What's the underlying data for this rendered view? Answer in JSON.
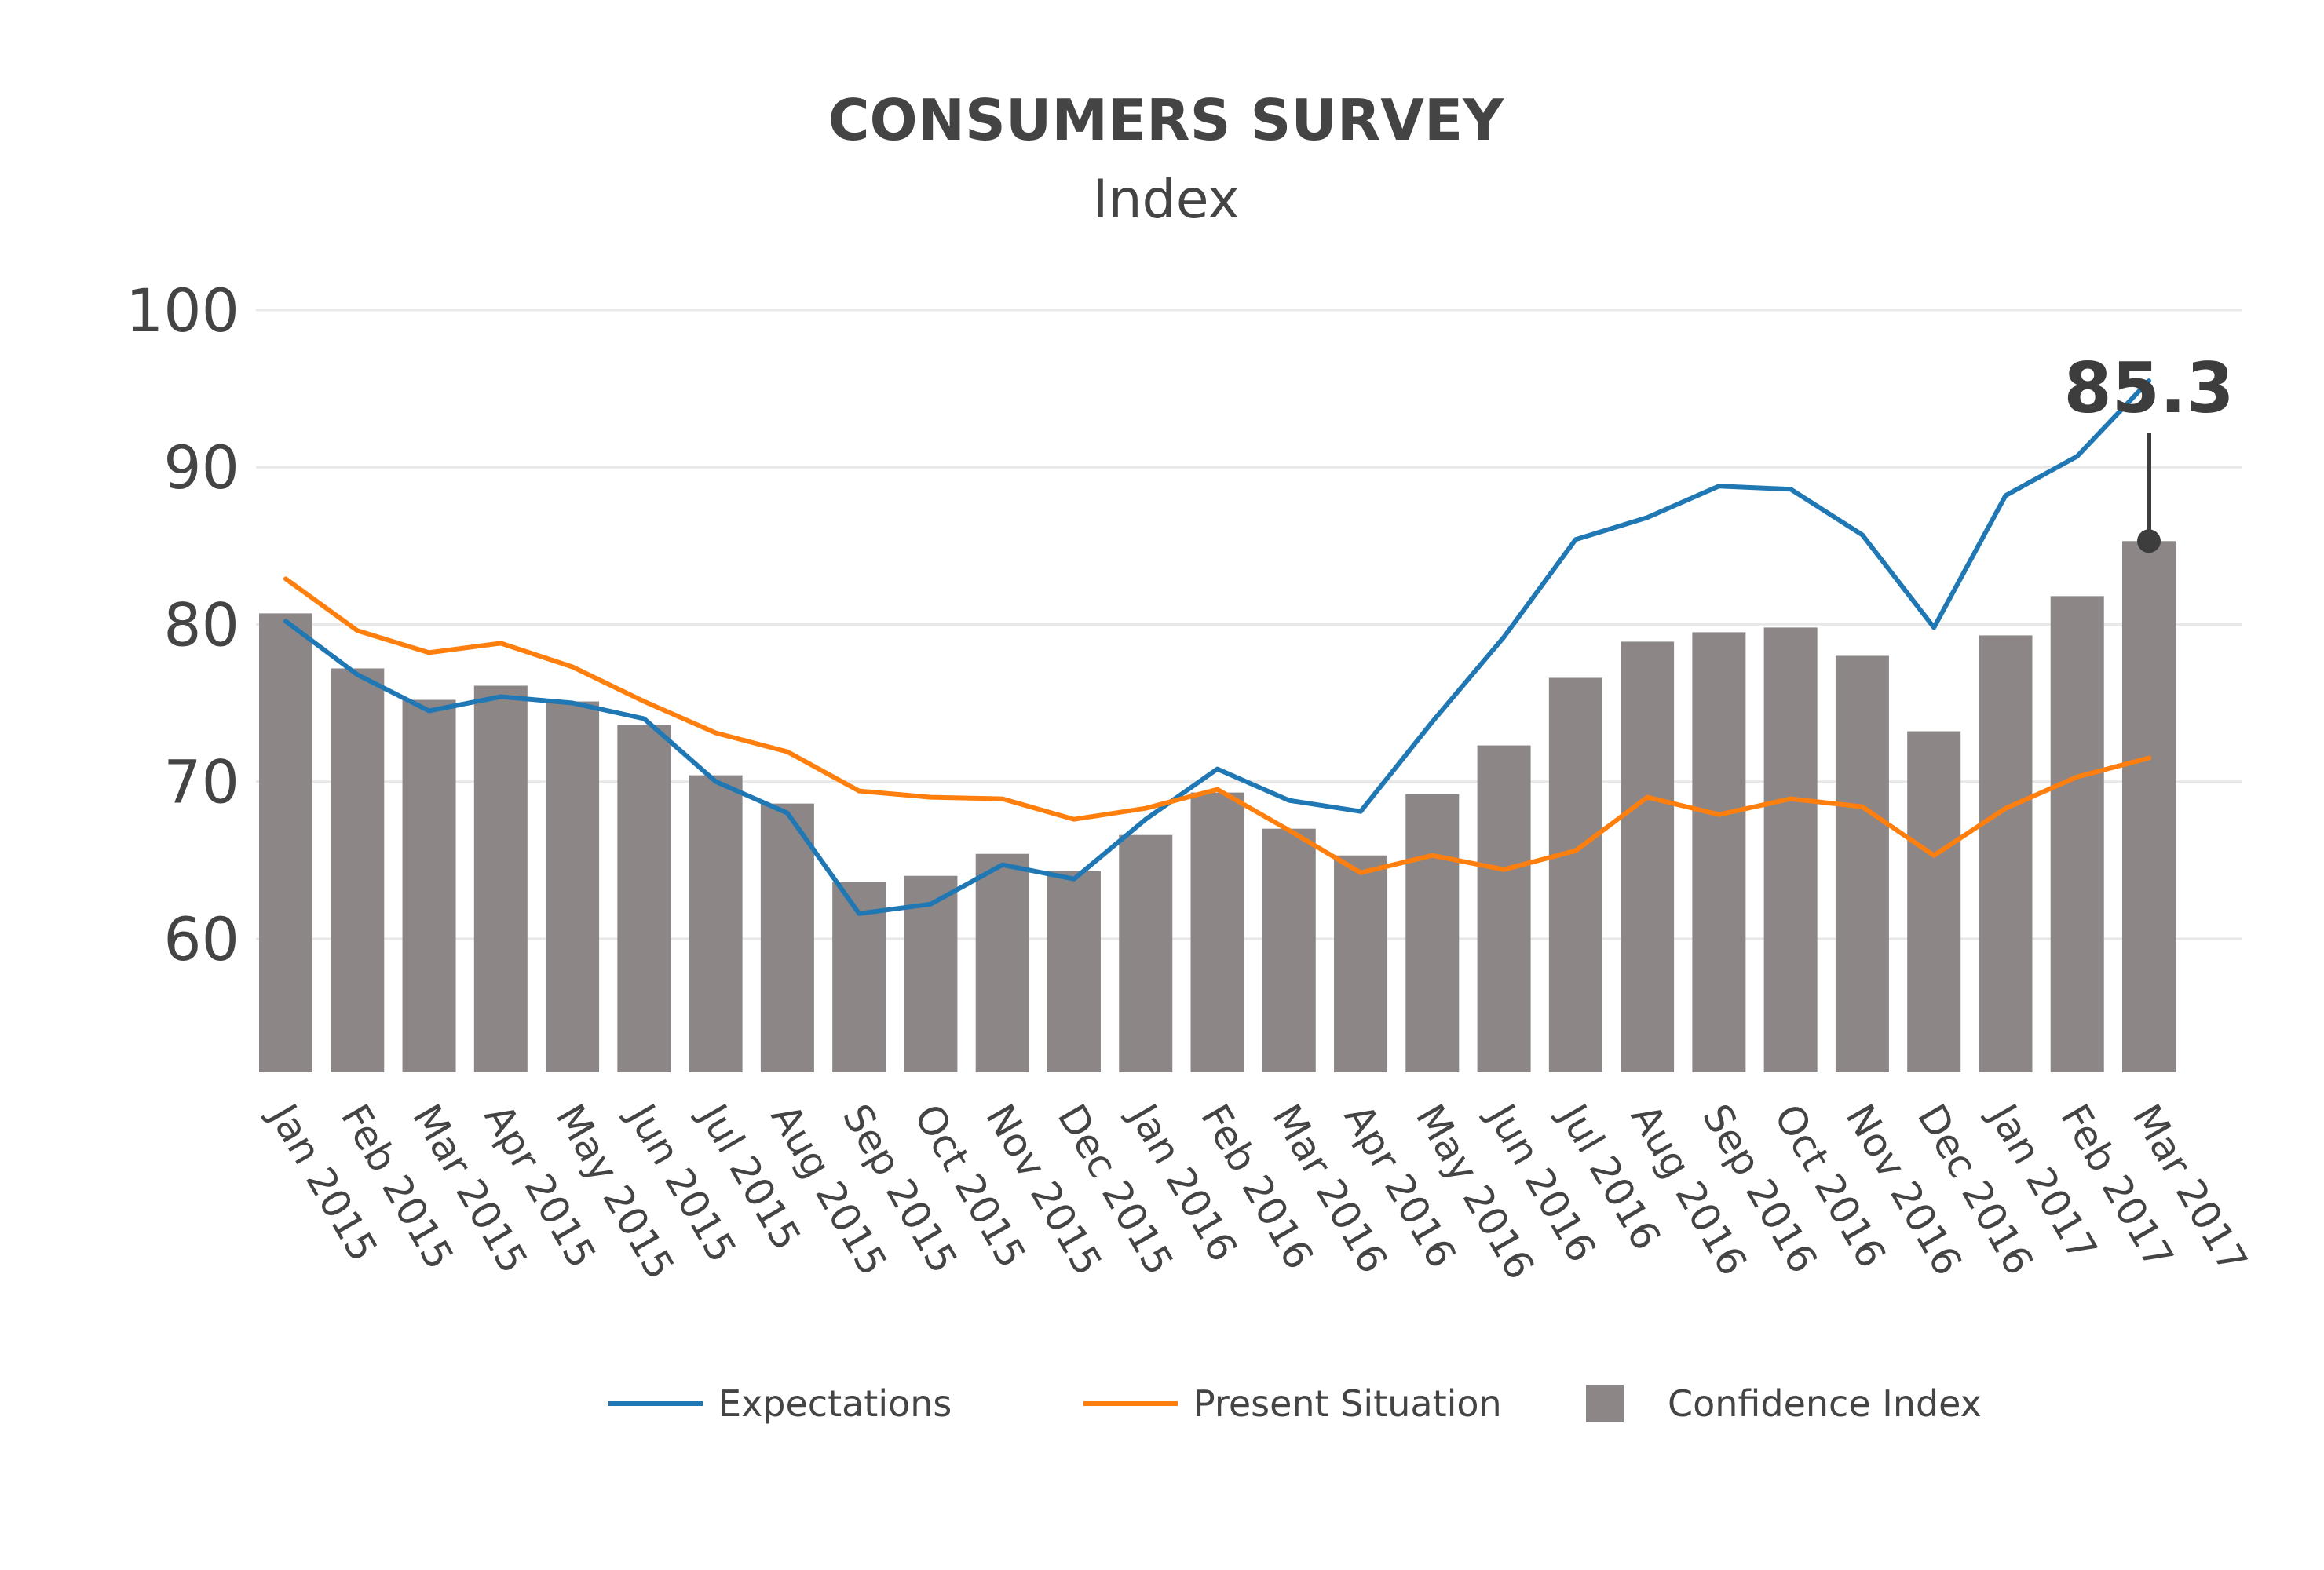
{
  "chart_data": {
    "type": "bar",
    "title": "CONSUMERS SURVEY",
    "subtitle": "Index",
    "categories": [
      "Jan 2015",
      "Feb 2015",
      "Mar 2015",
      "Apr 2015",
      "May 2015",
      "Jun 2015",
      "Jul 2015",
      "Aug 2015",
      "Sep 2015",
      "Oct 2015",
      "Nov 2015",
      "Dec 2015",
      "Jan 2016",
      "Feb 2016",
      "Mar 2016",
      "Apr 2016",
      "May 2016",
      "Jun 2016",
      "Jul 2016",
      "Aug 2016",
      "Sep 2016",
      "Oct 2016",
      "Nov 2016",
      "Dec 2016",
      "Jan 2017",
      "Feb 2017",
      "Mar 2017"
    ],
    "series": [
      {
        "name": "Confidence Index",
        "type": "bar",
        "color": "#8c8686",
        "values": [
          80.7,
          77.2,
          75.2,
          76.1,
          75.1,
          73.6,
          70.4,
          68.6,
          63.6,
          64.0,
          65.4,
          64.3,
          66.6,
          69.3,
          67.0,
          65.3,
          69.2,
          72.3,
          76.6,
          78.9,
          79.5,
          79.8,
          78.0,
          73.2,
          79.3,
          81.8,
          85.3
        ]
      },
      {
        "name": "Expectations",
        "type": "line",
        "color": "#1f77b4",
        "values": [
          80.2,
          76.8,
          74.5,
          75.4,
          75.0,
          74.0,
          70.0,
          68.0,
          61.6,
          62.2,
          64.7,
          63.8,
          67.6,
          70.8,
          68.8,
          68.1,
          73.8,
          79.2,
          85.4,
          86.8,
          88.8,
          88.6,
          85.7,
          79.8,
          88.2,
          90.7,
          95.5
        ]
      },
      {
        "name": "Present Situation",
        "type": "line",
        "color": "#ff7f0e",
        "values": [
          82.9,
          79.6,
          78.2,
          78.8,
          77.3,
          75.1,
          73.1,
          71.9,
          69.4,
          69.0,
          68.9,
          67.6,
          68.3,
          69.5,
          66.9,
          64.2,
          65.3,
          64.4,
          65.6,
          69.0,
          67.9,
          68.9,
          68.4,
          65.3,
          68.3,
          70.3,
          71.5
        ]
      }
    ],
    "legend_order": [
      "Expectations",
      "Present Situation",
      "Confidence Index"
    ],
    "xlabel": "",
    "ylabel": "",
    "ylim": [
      51.5,
      100
    ],
    "yticks": [
      60,
      70,
      80,
      90,
      100
    ],
    "grid": true,
    "legend_position": "bottom-center",
    "annotation": {
      "category": "Mar 2017",
      "series": "Confidence Index",
      "value": 85.3,
      "text": "85.3"
    }
  }
}
